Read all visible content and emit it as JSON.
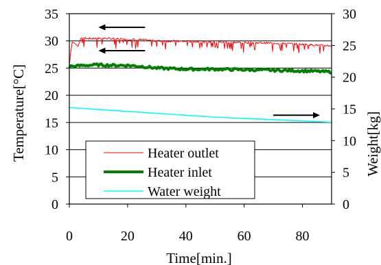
{
  "chart_data": {
    "type": "line",
    "xlabel": "Time[min.]",
    "ylabel_left": "Temperature[°C]",
    "ylabel_right": "Weight[kg]",
    "xlim": [
      0,
      90
    ],
    "ylim_left": [
      0,
      35
    ],
    "ylim_right": [
      0,
      30
    ],
    "x_ticks": [
      "0",
      "20",
      "40",
      "60",
      "80"
    ],
    "y_ticks_left": [
      "0",
      "5",
      "10",
      "15",
      "20",
      "25",
      "30",
      "35"
    ],
    "y_ticks_right": [
      "0",
      "5",
      "10",
      "15",
      "20",
      "25",
      "30"
    ],
    "grid": "horizontal",
    "legend_placement": "lower-left",
    "series": [
      {
        "name": "Heater outlet",
        "axis": "left",
        "color": "#ff0000",
        "style": "thin-noisy",
        "x": [
          0,
          0.5,
          1,
          2,
          3,
          4,
          5,
          6,
          8,
          10,
          15,
          20,
          25,
          30,
          40,
          50,
          60,
          70,
          80,
          85,
          90
        ],
        "y": [
          25.5,
          28.0,
          29.8,
          29.5,
          29.0,
          30.5,
          30.6,
          30.5,
          30.4,
          30.5,
          30.4,
          30.3,
          30.2,
          30.0,
          29.9,
          29.8,
          29.7,
          29.6,
          29.4,
          29.2,
          29.1
        ]
      },
      {
        "name": "Heater inlet",
        "axis": "left",
        "color": "#008000",
        "style": "thick",
        "x": [
          0,
          0.3,
          1,
          3,
          5,
          10,
          15,
          20,
          25,
          30,
          35,
          40,
          50,
          60,
          70,
          80,
          85,
          90
        ],
        "y": [
          25.0,
          25.5,
          25.3,
          25.4,
          25.5,
          25.6,
          25.5,
          25.5,
          25.3,
          25.0,
          24.9,
          24.8,
          24.8,
          24.7,
          24.6,
          24.5,
          24.4,
          24.3
        ]
      },
      {
        "name": "Water weight",
        "axis": "right",
        "color": "#00ffff",
        "style": "normal",
        "x": [
          0,
          10,
          20,
          30,
          40,
          50,
          60,
          70,
          80,
          90
        ],
        "y": [
          15.2,
          14.9,
          14.6,
          14.3,
          14.0,
          13.7,
          13.5,
          13.3,
          13.1,
          12.9
        ]
      }
    ],
    "annotations": [
      {
        "type": "arrow",
        "direction": "left",
        "axis": "left",
        "x_from": 26,
        "x_to": 10,
        "y": 32.5
      },
      {
        "type": "arrow",
        "direction": "left",
        "axis": "left",
        "x_from": 26,
        "x_to": 10,
        "y": 28.2
      },
      {
        "type": "arrow",
        "direction": "right",
        "axis": "right",
        "x_from": 70,
        "x_to": 86,
        "y": 14.0
      }
    ]
  }
}
